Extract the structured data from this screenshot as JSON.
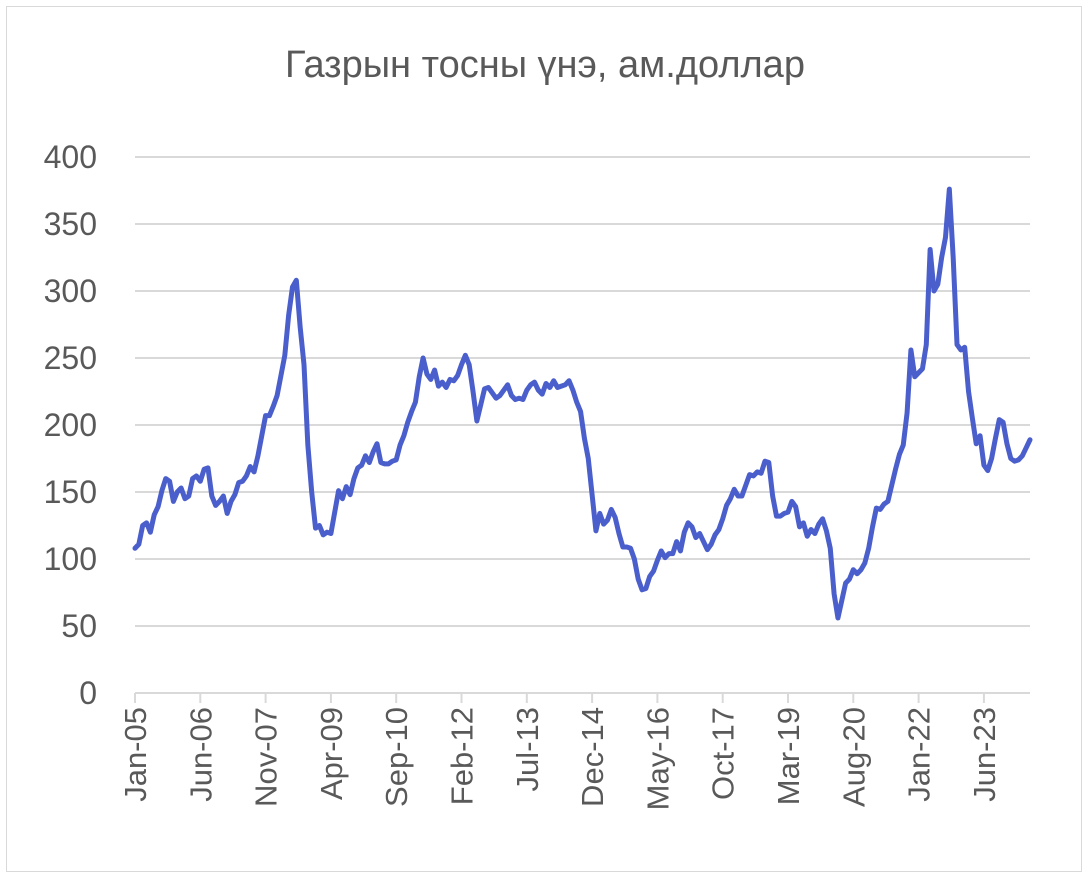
{
  "chart_data": {
    "type": "line",
    "title": "Газрын тосны үнэ, ам.доллар",
    "xlabel": "",
    "ylabel": "",
    "ylim": [
      0,
      400
    ],
    "yticks": [
      0,
      50,
      100,
      150,
      200,
      250,
      300,
      350,
      400
    ],
    "grid": true,
    "legend": "none",
    "x_tick_labels": [
      "Jan-05",
      "Jun-06",
      "Nov-07",
      "Apr-09",
      "Sep-10",
      "Feb-12",
      "Jul-13",
      "Dec-14",
      "May-16",
      "Oct-17",
      "Mar-19",
      "Aug-20",
      "Jan-22",
      "Jun-23"
    ],
    "colors": {
      "line": "#4A5FCB",
      "grid": "#d9d9d9",
      "text": "#595959"
    },
    "x_start": "2005-01",
    "x_end": "2024-06",
    "series": [
      {
        "name": "",
        "points": [
          [
            "2005-01",
            108
          ],
          [
            "2005-02",
            111
          ],
          [
            "2005-03",
            125
          ],
          [
            "2005-04",
            127
          ],
          [
            "2005-05",
            120
          ],
          [
            "2005-06",
            133
          ],
          [
            "2005-07",
            139
          ],
          [
            "2005-08",
            151
          ],
          [
            "2005-09",
            160
          ],
          [
            "2005-10",
            158
          ],
          [
            "2005-11",
            143
          ],
          [
            "2005-12",
            150
          ],
          [
            "2006-01",
            153
          ],
          [
            "2006-02",
            145
          ],
          [
            "2006-03",
            147
          ],
          [
            "2006-04",
            160
          ],
          [
            "2006-05",
            162
          ],
          [
            "2006-06",
            158
          ],
          [
            "2006-07",
            167
          ],
          [
            "2006-08",
            168
          ],
          [
            "2006-09",
            147
          ],
          [
            "2006-10",
            140
          ],
          [
            "2006-11",
            143
          ],
          [
            "2006-12",
            147
          ],
          [
            "2007-01",
            134
          ],
          [
            "2007-02",
            143
          ],
          [
            "2007-03",
            148
          ],
          [
            "2007-04",
            157
          ],
          [
            "2007-05",
            158
          ],
          [
            "2007-06",
            162
          ],
          [
            "2007-07",
            169
          ],
          [
            "2007-08",
            165
          ],
          [
            "2007-09",
            177
          ],
          [
            "2007-10",
            192
          ],
          [
            "2007-11",
            207
          ],
          [
            "2007-12",
            207
          ],
          [
            "2008-01",
            214
          ],
          [
            "2008-02",
            222
          ],
          [
            "2008-03",
            237
          ],
          [
            "2008-04",
            252
          ],
          [
            "2008-05",
            282
          ],
          [
            "2008-06",
            303
          ],
          [
            "2008-07",
            308
          ],
          [
            "2008-08",
            273
          ],
          [
            "2008-09",
            245
          ],
          [
            "2008-10",
            185
          ],
          [
            "2008-11",
            150
          ],
          [
            "2008-12",
            123
          ],
          [
            "2009-01",
            125
          ],
          [
            "2009-02",
            118
          ],
          [
            "2009-03",
            120
          ],
          [
            "2009-04",
            119
          ],
          [
            "2009-05",
            135
          ],
          [
            "2009-06",
            151
          ],
          [
            "2009-07",
            145
          ],
          [
            "2009-08",
            154
          ],
          [
            "2009-09",
            148
          ],
          [
            "2009-10",
            160
          ],
          [
            "2009-11",
            168
          ],
          [
            "2009-12",
            170
          ],
          [
            "2010-01",
            177
          ],
          [
            "2010-02",
            172
          ],
          [
            "2010-03",
            180
          ],
          [
            "2010-04",
            186
          ],
          [
            "2010-05",
            172
          ],
          [
            "2010-06",
            171
          ],
          [
            "2010-07",
            171
          ],
          [
            "2010-08",
            173
          ],
          [
            "2010-09",
            174
          ],
          [
            "2010-10",
            185
          ],
          [
            "2010-11",
            192
          ],
          [
            "2010-12",
            202
          ],
          [
            "2011-01",
            210
          ],
          [
            "2011-02",
            217
          ],
          [
            "2011-03",
            236
          ],
          [
            "2011-04",
            250
          ],
          [
            "2011-05",
            238
          ],
          [
            "2011-06",
            234
          ],
          [
            "2011-07",
            241
          ],
          [
            "2011-08",
            229
          ],
          [
            "2011-09",
            232
          ],
          [
            "2011-10",
            228
          ],
          [
            "2011-11",
            234
          ],
          [
            "2011-12",
            233
          ],
          [
            "2012-01",
            237
          ],
          [
            "2012-02",
            245
          ],
          [
            "2012-03",
            252
          ],
          [
            "2012-04",
            245
          ],
          [
            "2012-05",
            225
          ],
          [
            "2012-06",
            203
          ],
          [
            "2012-07",
            215
          ],
          [
            "2012-08",
            227
          ],
          [
            "2012-09",
            228
          ],
          [
            "2012-10",
            224
          ],
          [
            "2012-11",
            220
          ],
          [
            "2012-12",
            222
          ],
          [
            "2013-01",
            226
          ],
          [
            "2013-02",
            230
          ],
          [
            "2013-03",
            222
          ],
          [
            "2013-04",
            219
          ],
          [
            "2013-05",
            220
          ],
          [
            "2013-06",
            219
          ],
          [
            "2013-07",
            226
          ],
          [
            "2013-08",
            230
          ],
          [
            "2013-09",
            232
          ],
          [
            "2013-10",
            226
          ],
          [
            "2013-11",
            223
          ],
          [
            "2013-12",
            231
          ],
          [
            "2014-01",
            228
          ],
          [
            "2014-02",
            233
          ],
          [
            "2014-03",
            228
          ],
          [
            "2014-04",
            229
          ],
          [
            "2014-05",
            230
          ],
          [
            "2014-06",
            233
          ],
          [
            "2014-07",
            226
          ],
          [
            "2014-08",
            217
          ],
          [
            "2014-09",
            210
          ],
          [
            "2014-10",
            190
          ],
          [
            "2014-11",
            175
          ],
          [
            "2014-12",
            148
          ],
          [
            "2015-01",
            121
          ],
          [
            "2015-02",
            134
          ],
          [
            "2015-03",
            126
          ],
          [
            "2015-04",
            129
          ],
          [
            "2015-05",
            137
          ],
          [
            "2015-06",
            131
          ],
          [
            "2015-07",
            119
          ],
          [
            "2015-08",
            109
          ],
          [
            "2015-09",
            109
          ],
          [
            "2015-10",
            108
          ],
          [
            "2015-11",
            100
          ],
          [
            "2015-12",
            85
          ],
          [
            "2016-01",
            77
          ],
          [
            "2016-02",
            78
          ],
          [
            "2016-03",
            87
          ],
          [
            "2016-04",
            91
          ],
          [
            "2016-05",
            99
          ],
          [
            "2016-06",
            106
          ],
          [
            "2016-07",
            101
          ],
          [
            "2016-08",
            104
          ],
          [
            "2016-09",
            104
          ],
          [
            "2016-10",
            113
          ],
          [
            "2016-11",
            106
          ],
          [
            "2016-12",
            120
          ],
          [
            "2017-01",
            127
          ],
          [
            "2017-02",
            124
          ],
          [
            "2017-03",
            116
          ],
          [
            "2017-04",
            119
          ],
          [
            "2017-05",
            113
          ],
          [
            "2017-06",
            107
          ],
          [
            "2017-07",
            111
          ],
          [
            "2017-08",
            118
          ],
          [
            "2017-09",
            122
          ],
          [
            "2017-10",
            130
          ],
          [
            "2017-11",
            140
          ],
          [
            "2017-12",
            145
          ],
          [
            "2018-01",
            152
          ],
          [
            "2018-02",
            147
          ],
          [
            "2018-03",
            147
          ],
          [
            "2018-04",
            155
          ],
          [
            "2018-05",
            163
          ],
          [
            "2018-06",
            162
          ],
          [
            "2018-07",
            165
          ],
          [
            "2018-08",
            164
          ],
          [
            "2018-09",
            173
          ],
          [
            "2018-10",
            172
          ],
          [
            "2018-11",
            147
          ],
          [
            "2018-12",
            132
          ],
          [
            "2019-01",
            132
          ],
          [
            "2019-02",
            134
          ],
          [
            "2019-03",
            135
          ],
          [
            "2019-04",
            143
          ],
          [
            "2019-05",
            139
          ],
          [
            "2019-06",
            124
          ],
          [
            "2019-07",
            127
          ],
          [
            "2019-08",
            117
          ],
          [
            "2019-09",
            122
          ],
          [
            "2019-10",
            119
          ],
          [
            "2019-11",
            126
          ],
          [
            "2019-12",
            130
          ],
          [
            "2020-01",
            121
          ],
          [
            "2020-02",
            108
          ],
          [
            "2020-03",
            74
          ],
          [
            "2020-04",
            56
          ],
          [
            "2020-05",
            69
          ],
          [
            "2020-06",
            82
          ],
          [
            "2020-07",
            85
          ],
          [
            "2020-08",
            92
          ],
          [
            "2020-09",
            89
          ],
          [
            "2020-10",
            92
          ],
          [
            "2020-11",
            97
          ],
          [
            "2020-12",
            108
          ],
          [
            "2021-01",
            124
          ],
          [
            "2021-02",
            138
          ],
          [
            "2021-03",
            137
          ],
          [
            "2021-04",
            141
          ],
          [
            "2021-05",
            143
          ],
          [
            "2021-06",
            155
          ],
          [
            "2021-07",
            167
          ],
          [
            "2021-08",
            178
          ],
          [
            "2021-09",
            185
          ],
          [
            "2021-10",
            209
          ],
          [
            "2021-11",
            256
          ],
          [
            "2021-12",
            236
          ],
          [
            "2022-01",
            239
          ],
          [
            "2022-02",
            242
          ],
          [
            "2022-03",
            260
          ],
          [
            "2022-04",
            331
          ],
          [
            "2022-05",
            300
          ],
          [
            "2022-06",
            305
          ],
          [
            "2022-07",
            325
          ],
          [
            "2022-08",
            340
          ],
          [
            "2022-09",
            376
          ],
          [
            "2022-10",
            325
          ],
          [
            "2022-11",
            260
          ],
          [
            "2022-12",
            256
          ],
          [
            "2023-01",
            258
          ],
          [
            "2023-02",
            225
          ],
          [
            "2023-03",
            205
          ],
          [
            "2023-04",
            186
          ],
          [
            "2023-05",
            192
          ],
          [
            "2023-06",
            170
          ],
          [
            "2023-07",
            166
          ],
          [
            "2023-08",
            175
          ],
          [
            "2023-09",
            190
          ],
          [
            "2023-10",
            204
          ],
          [
            "2023-11",
            202
          ],
          [
            "2023-12",
            186
          ],
          [
            "2024-01",
            175
          ],
          [
            "2024-02",
            173
          ],
          [
            "2024-03",
            174
          ],
          [
            "2024-04",
            177
          ],
          [
            "2024-05",
            183
          ],
          [
            "2024-06",
            189
          ]
        ]
      }
    ]
  }
}
